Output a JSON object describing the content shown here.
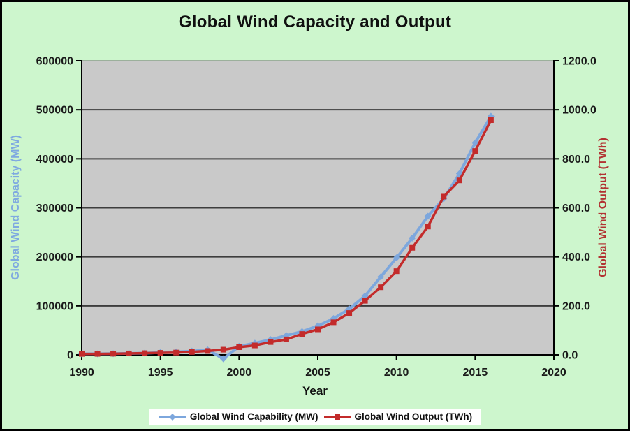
{
  "chart_data": {
    "type": "line",
    "title": "Global Wind Capacity and Output",
    "xlabel": "Year",
    "ylabel_left": "Global Wind Capacity (MW)",
    "ylabel_right": "Global Wind Output (TWh)",
    "grid": true,
    "legend_position": "bottom",
    "x_range": [
      1990,
      2020
    ],
    "x_ticks": {
      "values": [
        1990,
        1995,
        2000,
        2005,
        2010,
        2015,
        2020
      ],
      "labels": [
        "1990",
        "1995",
        "2000",
        "2005",
        "2010",
        "2015",
        "2020"
      ]
    },
    "y_left": {
      "min": 0,
      "max": 600000,
      "tick_values": [
        0,
        100000,
        200000,
        300000,
        400000,
        500000,
        600000
      ],
      "tick_labels": [
        "0",
        "100000",
        "200000",
        "300000",
        "400000",
        "500000",
        "600000"
      ]
    },
    "y_right": {
      "min": 0,
      "max": 1200,
      "tick_values": [
        0,
        200,
        400,
        600,
        800,
        1000,
        1200
      ],
      "tick_labels": [
        "0.0",
        "200.0",
        "400.0",
        "600.0",
        "800.0",
        "1000.0",
        "1200.0"
      ]
    },
    "years": [
      1990,
      1991,
      1992,
      1993,
      1994,
      1995,
      1996,
      1997,
      1998,
      1999,
      2000,
      2001,
      2002,
      2003,
      2004,
      2005,
      2006,
      2007,
      2008,
      2009,
      2010,
      2011,
      2012,
      2013,
      2014,
      2015,
      2016
    ],
    "series": [
      {
        "name": "Global Wind Capability (MW)",
        "axis": "left",
        "color": "#7da7dd",
        "marker": "diamond",
        "values": [
          1930,
          2170,
          2510,
          2990,
          3490,
          4780,
          6100,
          7600,
          10200,
          -8000,
          17400,
          23900,
          31100,
          39430,
          47620,
          59090,
          74050,
          93820,
          120290,
          159050,
          197960,
          238110,
          282850,
          318700,
          369860,
          432680,
          486790
        ]
      },
      {
        "name": "Global Wind Output (TWh)",
        "axis": "right",
        "color": "#c32b2b",
        "marker": "square",
        "values": [
          3.9,
          4.1,
          4.7,
          5.8,
          7.0,
          8.3,
          9.4,
          12.0,
          15.9,
          21.2,
          31.4,
          38.4,
          52.3,
          63.0,
          85.1,
          104.1,
          132.9,
          170.7,
          220.6,
          275.9,
          341.6,
          436.8,
          523.8,
          645.7,
          712.0,
          831.8,
          957.7
        ]
      }
    ],
    "colors": {
      "background": "#cdf6cd",
      "plot_bg": "#c9c9c9",
      "grid": "#3d3d3d",
      "axis": "#000000",
      "capacity": "#7da7dd",
      "output": "#c32b2b",
      "left_axis_title": "#7fa9e0",
      "right_axis_title": "#b23232",
      "tick": "#1a1a1a",
      "legend_bg": "#ffffff"
    }
  }
}
